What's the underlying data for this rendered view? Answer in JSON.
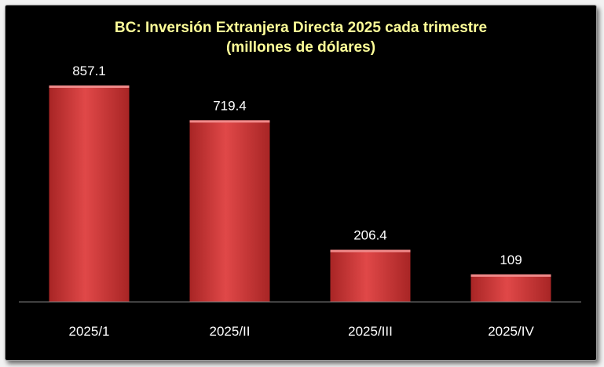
{
  "chart_data": {
    "type": "bar",
    "title": "BC: Inversión Extranjera Directa 2025 cada trimestre",
    "subtitle": "(millones de dólares)",
    "categories": [
      "2025/1",
      "2025/II",
      "2025/III",
      "2025/IV"
    ],
    "values": [
      857.1,
      719.4,
      206.4,
      109
    ],
    "value_labels": [
      "857.1",
      "719.4",
      "206.4",
      "109"
    ],
    "xlabel": "",
    "ylabel": "",
    "ylim": [
      0,
      1000
    ],
    "grid": false,
    "legend": "none",
    "colors": {
      "bar": "#e04848",
      "bar_dark": "#a82525",
      "bar_light": "#f08a8a",
      "title": "#ffff99",
      "text": "#ffffff",
      "background": "#000000",
      "axis": "#7f7f7f"
    }
  }
}
